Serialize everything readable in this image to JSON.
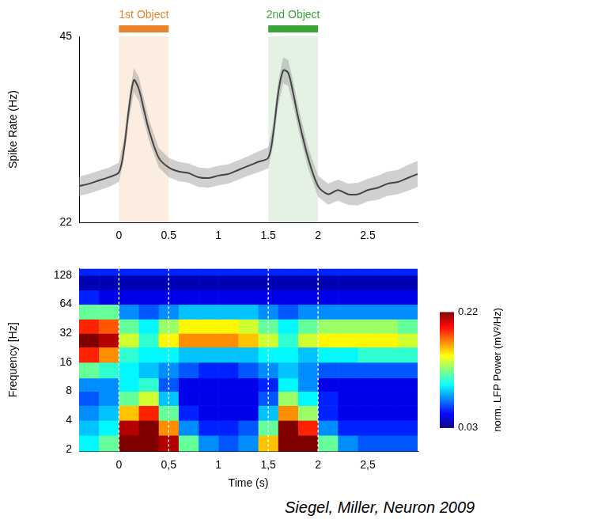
{
  "chart_data": [
    {
      "type": "line",
      "y_label": "Spike Rate (Hz)",
      "xlim": [
        -0.4,
        3.0
      ],
      "xticks": [
        0,
        0.5,
        1,
        1.5,
        2,
        2.5
      ],
      "ylim": [
        22,
        45
      ],
      "yticks": [
        22,
        45
      ],
      "grid": false,
      "x": [
        -0.4,
        -0.3,
        -0.2,
        -0.1,
        0,
        0.05,
        0.1,
        0.15,
        0.2,
        0.25,
        0.3,
        0.4,
        0.5,
        0.6,
        0.7,
        0.8,
        0.9,
        1.0,
        1.1,
        1.2,
        1.3,
        1.4,
        1.5,
        1.55,
        1.6,
        1.65,
        1.7,
        1.75,
        1.8,
        1.9,
        2.0,
        2.1,
        2.2,
        2.3,
        2.4,
        2.5,
        2.6,
        2.7,
        2.8,
        2.9,
        3.0
      ],
      "series": [
        {
          "color": "#000000",
          "values": [
            26.5,
            26.8,
            27.2,
            27.6,
            28.2,
            31,
            36,
            39.6,
            38.5,
            36,
            33.5,
            30,
            28.8,
            28.3,
            28.1,
            27.6,
            27.5,
            27.8,
            28,
            28.5,
            29,
            29.5,
            30,
            33,
            38,
            40.8,
            40.5,
            38,
            35,
            30,
            26.5,
            25.5,
            26,
            25.5,
            25.5,
            26,
            26.3,
            26.8,
            27,
            27.5,
            28
          ],
          "error": [
            1.2,
            1.2,
            1.2,
            1.2,
            1.2,
            1.3,
            1.4,
            1.5,
            1.5,
            1.4,
            1.3,
            1.2,
            1.2,
            1.2,
            1.2,
            1.2,
            1.2,
            1.2,
            1.2,
            1.2,
            1.2,
            1.3,
            1.3,
            1.4,
            1.5,
            1.6,
            1.6,
            1.5,
            1.4,
            1.3,
            1.3,
            1.3,
            1.3,
            1.3,
            1.4,
            1.4,
            1.5,
            1.5,
            1.5,
            1.6,
            1.6
          ]
        }
      ],
      "shaded_regions": [
        {
          "label": "1st Object",
          "start": 0,
          "end": 0.5,
          "color": "#e8832a"
        },
        {
          "label": "2nd Object",
          "start": 1.5,
          "end": 2,
          "color": "#3aa63a"
        }
      ]
    },
    {
      "type": "heatmap",
      "x_label": "Time (s)",
      "y_label": "Frequency [Hz]",
      "log": "y",
      "grid": false,
      "xlim": [
        -0.4,
        3.0
      ],
      "xticks": [
        0,
        {
          "value": 0.5,
          "label": "0,5"
        },
        1,
        {
          "value": 1.5,
          "label": "1,5"
        },
        2,
        {
          "value": 2.5,
          "label": "2,5"
        }
      ],
      "ylim": [
        1.9,
        150
      ],
      "yticks": [
        2,
        4,
        8,
        16,
        32,
        64,
        128
      ],
      "x_edges": [
        -0.4,
        -0.2,
        0,
        0.2,
        0.4,
        0.6,
        0.8,
        1.0,
        1.2,
        1.4,
        1.6,
        1.8,
        2.0,
        2.2,
        2.4,
        2.6,
        2.8,
        3.0
      ],
      "y_edges": [
        1.9,
        2.8,
        4,
        5.7,
        8,
        11,
        16,
        23,
        32,
        45,
        64,
        90,
        128,
        150
      ],
      "cells": [
        [
          0.1,
          0.12,
          0.22,
          0.22,
          0.21,
          0.12,
          0.08,
          0.07,
          0.08,
          0.16,
          0.22,
          0.22,
          0.12,
          0.08,
          0.07,
          0.07,
          0.07
        ],
        [
          0.09,
          0.1,
          0.21,
          0.22,
          0.17,
          0.08,
          0.06,
          0.06,
          0.07,
          0.12,
          0.22,
          0.19,
          0.08,
          0.06,
          0.06,
          0.06,
          0.06
        ],
        [
          0.08,
          0.09,
          0.16,
          0.19,
          0.12,
          0.06,
          0.05,
          0.05,
          0.05,
          0.09,
          0.17,
          0.13,
          0.06,
          0.05,
          0.05,
          0.05,
          0.05
        ],
        [
          0.07,
          0.08,
          0.12,
          0.14,
          0.09,
          0.05,
          0.05,
          0.05,
          0.05,
          0.07,
          0.13,
          0.1,
          0.06,
          0.05,
          0.05,
          0.05,
          0.05
        ],
        [
          0.08,
          0.08,
          0.1,
          0.11,
          0.07,
          0.05,
          0.05,
          0.05,
          0.05,
          0.06,
          0.1,
          0.08,
          0.05,
          0.05,
          0.05,
          0.05,
          0.05
        ],
        [
          0.12,
          0.11,
          0.1,
          0.09,
          0.08,
          0.07,
          0.06,
          0.06,
          0.07,
          0.08,
          0.09,
          0.08,
          0.07,
          0.07,
          0.07,
          0.07,
          0.07
        ],
        [
          0.19,
          0.17,
          0.11,
          0.1,
          0.1,
          0.09,
          0.09,
          0.09,
          0.09,
          0.1,
          0.1,
          0.09,
          0.1,
          0.1,
          0.11,
          0.11,
          0.11
        ],
        [
          0.22,
          0.21,
          0.14,
          0.11,
          0.15,
          0.17,
          0.17,
          0.17,
          0.16,
          0.14,
          0.11,
          0.14,
          0.15,
          0.15,
          0.15,
          0.15,
          0.14
        ],
        [
          0.19,
          0.18,
          0.12,
          0.1,
          0.13,
          0.15,
          0.15,
          0.15,
          0.14,
          0.12,
          0.1,
          0.12,
          0.13,
          0.13,
          0.13,
          0.13,
          0.12
        ],
        [
          0.12,
          0.12,
          0.08,
          0.07,
          0.08,
          0.09,
          0.09,
          0.09,
          0.09,
          0.08,
          0.07,
          0.08,
          0.08,
          0.08,
          0.08,
          0.08,
          0.08
        ],
        [
          0.06,
          0.05,
          0.05,
          0.05,
          0.05,
          0.05,
          0.05,
          0.05,
          0.05,
          0.05,
          0.05,
          0.05,
          0.05,
          0.05,
          0.05,
          0.05,
          0.05
        ],
        [
          0.04,
          0.04,
          0.04,
          0.04,
          0.04,
          0.04,
          0.04,
          0.04,
          0.04,
          0.04,
          0.04,
          0.04,
          0.04,
          0.04,
          0.04,
          0.04,
          0.04
        ],
        [
          0.06,
          0.06,
          0.06,
          0.06,
          0.06,
          0.06,
          0.06,
          0.06,
          0.06,
          0.06,
          0.06,
          0.06,
          0.06,
          0.06,
          0.06,
          0.06,
          0.06
        ]
      ],
      "colorbar": {
        "label": "norm. LFP Power (mV²/Hz)",
        "range": [
          0.03,
          0.22
        ],
        "ticks": [
          0.03,
          0.22
        ]
      },
      "event_lines": [
        0,
        0.5,
        1.5,
        2
      ],
      "source": "Siegel, Miller, Neuron 2009"
    }
  ]
}
